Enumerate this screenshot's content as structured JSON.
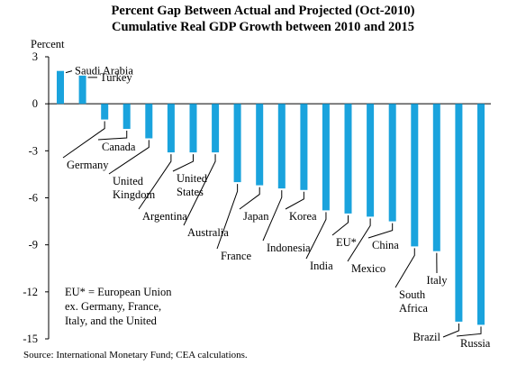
{
  "chart_data": {
    "type": "bar",
    "title": "Percent Gap Between Actual and Projected (Oct-2010)",
    "subtitle": "Cumulative Real GDP Growth between 2010 and 2015",
    "ylabel": "Percent",
    "ylim": [
      -15,
      3
    ],
    "yticks": [
      3,
      0,
      -3,
      -6,
      -9,
      -12,
      -15
    ],
    "bar_color": "#1aa3dd",
    "categories": [
      "Saudi Arabia",
      "Turkey",
      "Germany",
      "Canada",
      "United Kingdom",
      "Argentina",
      "United States",
      "Australia",
      "France",
      "Japan",
      "Indonesia",
      "Korea",
      "India",
      "EU*",
      "Mexico",
      "China",
      "South Africa",
      "Italy",
      "Brazil",
      "Russia"
    ],
    "label_lines": [
      [
        "Saudi Arabia"
      ],
      [
        "Turkey"
      ],
      [
        "Germany"
      ],
      [
        "Canada"
      ],
      [
        "United",
        "Kingdom"
      ],
      [
        "Argentina"
      ],
      [
        "United",
        "States"
      ],
      [
        "Australia"
      ],
      [
        "France"
      ],
      [
        "Japan"
      ],
      [
        "Indonesia"
      ],
      [
        "Korea"
      ],
      [
        "India"
      ],
      [
        "EU*"
      ],
      [
        "Mexico"
      ],
      [
        "China"
      ],
      [
        "South",
        "Africa"
      ],
      [
        "Italy"
      ],
      [
        "Brazil"
      ],
      [
        "Russia"
      ]
    ],
    "values": [
      2.1,
      1.8,
      -1.0,
      -1.6,
      -2.2,
      -3.1,
      -3.1,
      -3.1,
      -5.0,
      -5.2,
      -5.4,
      -5.5,
      -6.8,
      -7.0,
      -7.2,
      -7.5,
      -9.1,
      -9.4,
      -13.9,
      -14.1
    ],
    "annotation_lines": [
      "EU* = European Union",
      "ex. Germany, France,",
      "Italy, and the United"
    ],
    "source": "Source: International Monetary Fund; CEA calculations."
  }
}
